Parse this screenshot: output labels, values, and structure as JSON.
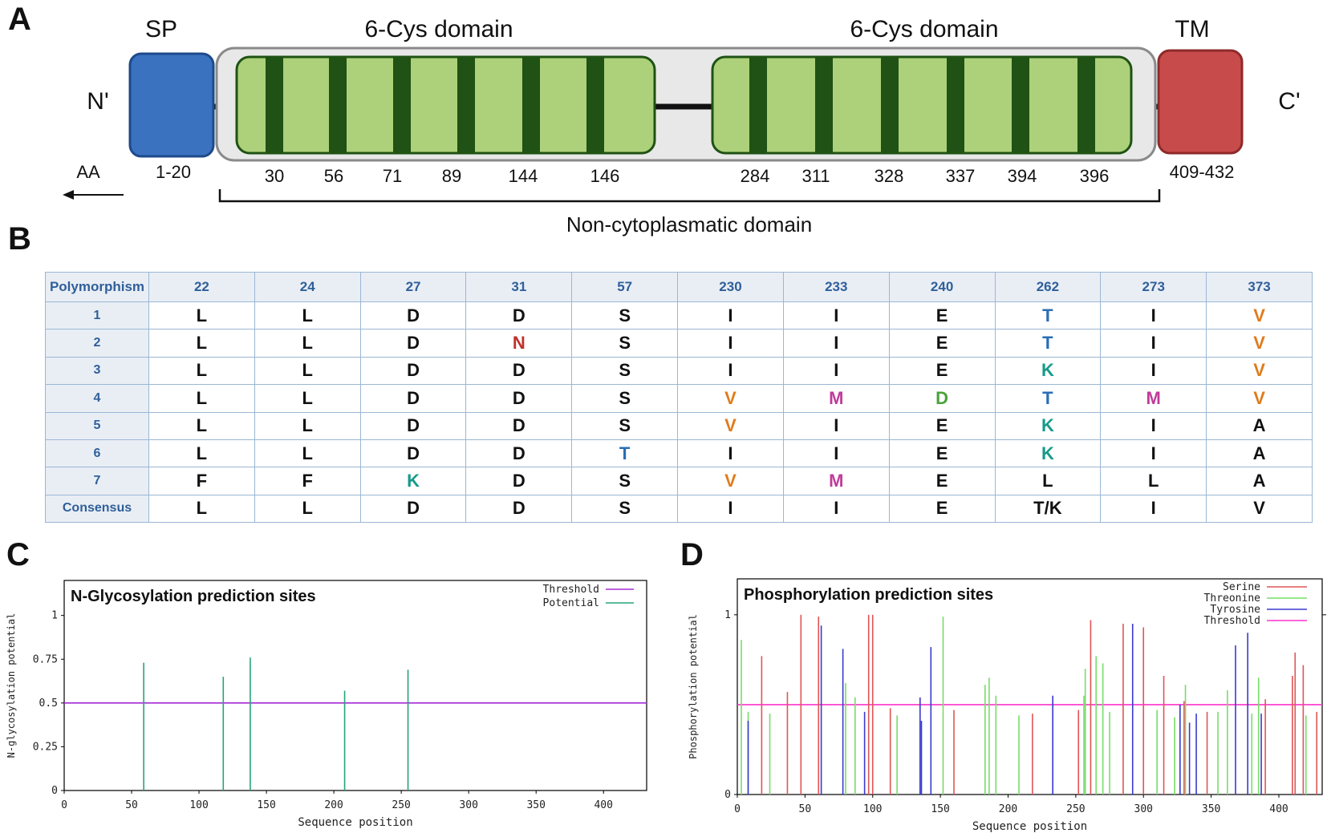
{
  "panels": {
    "a": "A",
    "b": "B",
    "c": "C",
    "d": "D"
  },
  "panel_a": {
    "n_term": "N'",
    "c_term": "C'",
    "sp_label": "SP",
    "tm_label": "TM",
    "domain1_label": "6-Cys domain",
    "domain2_label": "6-Cys domain",
    "aa_label": "AA",
    "sp_range": "1-20",
    "tm_range": "409-432",
    "domain1_positions": [
      "30",
      "56",
      "71",
      "89",
      "144",
      "146"
    ],
    "domain2_positions": [
      "284",
      "311",
      "328",
      "337",
      "394",
      "396"
    ],
    "bracket_label": "Non-cytoplasmatic domain",
    "colors": {
      "sp": "#3a72c0",
      "tm": "#c84b4b",
      "domain_light": "#acd17a",
      "domain_dark": "#1f5214",
      "shell": "#e8e8e8"
    }
  },
  "table": {
    "corner": "Polymorphism",
    "positions": [
      "22",
      "24",
      "27",
      "31",
      "57",
      "230",
      "233",
      "240",
      "262",
      "273",
      "373"
    ],
    "rows": [
      {
        "label": "1",
        "cells": [
          {
            "v": "L"
          },
          {
            "v": "L"
          },
          {
            "v": "D"
          },
          {
            "v": "D"
          },
          {
            "v": "S"
          },
          {
            "v": "I"
          },
          {
            "v": "I"
          },
          {
            "v": "E"
          },
          {
            "v": "T",
            "c": "#2a6db5"
          },
          {
            "v": "I"
          },
          {
            "v": "V",
            "c": "#e07b1a"
          }
        ]
      },
      {
        "label": "2",
        "cells": [
          {
            "v": "L"
          },
          {
            "v": "L"
          },
          {
            "v": "D"
          },
          {
            "v": "N",
            "c": "#c0302a"
          },
          {
            "v": "S"
          },
          {
            "v": "I"
          },
          {
            "v": "I"
          },
          {
            "v": "E"
          },
          {
            "v": "T",
            "c": "#2a6db5"
          },
          {
            "v": "I"
          },
          {
            "v": "V",
            "c": "#e07b1a"
          }
        ]
      },
      {
        "label": "3",
        "cells": [
          {
            "v": "L"
          },
          {
            "v": "L"
          },
          {
            "v": "D"
          },
          {
            "v": "D"
          },
          {
            "v": "S"
          },
          {
            "v": "I"
          },
          {
            "v": "I"
          },
          {
            "v": "E"
          },
          {
            "v": "K",
            "c": "#179a8a"
          },
          {
            "v": "I"
          },
          {
            "v": "V",
            "c": "#e07b1a"
          }
        ]
      },
      {
        "label": "4",
        "cells": [
          {
            "v": "L"
          },
          {
            "v": "L"
          },
          {
            "v": "D"
          },
          {
            "v": "D"
          },
          {
            "v": "S"
          },
          {
            "v": "V",
            "c": "#e07b1a"
          },
          {
            "v": "M",
            "c": "#c03b9a"
          },
          {
            "v": "D",
            "c": "#4aa33a"
          },
          {
            "v": "T",
            "c": "#2a6db5"
          },
          {
            "v": "M",
            "c": "#c03b9a"
          },
          {
            "v": "V",
            "c": "#e07b1a"
          }
        ]
      },
      {
        "label": "5",
        "cells": [
          {
            "v": "L"
          },
          {
            "v": "L"
          },
          {
            "v": "D"
          },
          {
            "v": "D"
          },
          {
            "v": "S"
          },
          {
            "v": "V",
            "c": "#e07b1a"
          },
          {
            "v": "I"
          },
          {
            "v": "E"
          },
          {
            "v": "K",
            "c": "#179a8a"
          },
          {
            "v": "I"
          },
          {
            "v": "A"
          }
        ]
      },
      {
        "label": "6",
        "cells": [
          {
            "v": "L"
          },
          {
            "v": "L"
          },
          {
            "v": "D"
          },
          {
            "v": "D"
          },
          {
            "v": "T",
            "c": "#2a6db5"
          },
          {
            "v": "I"
          },
          {
            "v": "I"
          },
          {
            "v": "E"
          },
          {
            "v": "K",
            "c": "#179a8a"
          },
          {
            "v": "I"
          },
          {
            "v": "A"
          }
        ]
      },
      {
        "label": "7",
        "cells": [
          {
            "v": "F"
          },
          {
            "v": "F"
          },
          {
            "v": "K",
            "c": "#179a8a"
          },
          {
            "v": "D"
          },
          {
            "v": "S"
          },
          {
            "v": "V",
            "c": "#e07b1a"
          },
          {
            "v": "M",
            "c": "#c03b9a"
          },
          {
            "v": "E"
          },
          {
            "v": "L"
          },
          {
            "v": "L"
          },
          {
            "v": "A"
          }
        ]
      },
      {
        "label": "Consensus",
        "cells": [
          {
            "v": "L"
          },
          {
            "v": "L"
          },
          {
            "v": "D"
          },
          {
            "v": "D"
          },
          {
            "v": "S"
          },
          {
            "v": "I"
          },
          {
            "v": "I"
          },
          {
            "v": "E"
          },
          {
            "v": "T/K"
          },
          {
            "v": "I"
          },
          {
            "v": "V"
          }
        ]
      }
    ]
  },
  "chart_data": [
    {
      "type": "bar",
      "title": "N-Glycosylation prediction sites",
      "xlabel": "Sequence position",
      "ylabel": "N-glycosylation potential",
      "xlim": [
        0,
        432
      ],
      "ylim": [
        0,
        1.2
      ],
      "xticks": [
        0,
        50,
        100,
        150,
        200,
        250,
        300,
        350,
        400
      ],
      "yticks": [
        0,
        0.25,
        0.5,
        0.75,
        1
      ],
      "ytick_labels": [
        "0",
        "0.25",
        "0.5",
        "0.75",
        "1"
      ],
      "threshold": 0.5,
      "legend": [
        {
          "name": "Threshold",
          "color": "#a52ad6"
        },
        {
          "name": "Potential",
          "color": "#27a37a"
        }
      ],
      "series": [
        {
          "name": "Potential",
          "color": "#27a37a",
          "points": [
            {
              "x": 59,
              "y": 0.73
            },
            {
              "x": 118,
              "y": 0.65
            },
            {
              "x": 138,
              "y": 0.76
            },
            {
              "x": 208,
              "y": 0.57
            },
            {
              "x": 255,
              "y": 0.69
            }
          ]
        }
      ]
    },
    {
      "type": "bar",
      "title": "Phosphorylation prediction sites",
      "xlabel": "Sequence position",
      "ylabel": "Phosphorylation potential",
      "xlim": [
        0,
        432
      ],
      "ylim": [
        0,
        1.2
      ],
      "xticks": [
        0,
        50,
        100,
        150,
        200,
        250,
        300,
        350,
        400
      ],
      "yticks": [
        0,
        1
      ],
      "ytick_labels": [
        "0",
        "1"
      ],
      "threshold": 0.5,
      "legend": [
        {
          "name": "Serine",
          "color": "#e05555"
        },
        {
          "name": "Threonine",
          "color": "#77dd66"
        },
        {
          "name": "Tyrosine",
          "color": "#3a3ad0"
        },
        {
          "name": "Threshold",
          "color": "#ff33cc"
        }
      ],
      "series": [
        {
          "name": "Serine",
          "color": "#e05555",
          "points": [
            {
              "x": 18,
              "y": 0.77
            },
            {
              "x": 37,
              "y": 0.57
            },
            {
              "x": 47,
              "y": 1.0
            },
            {
              "x": 60,
              "y": 0.99
            },
            {
              "x": 97,
              "y": 1.0
            },
            {
              "x": 100,
              "y": 1.0
            },
            {
              "x": 113,
              "y": 0.48
            },
            {
              "x": 160,
              "y": 0.47
            },
            {
              "x": 218,
              "y": 0.45
            },
            {
              "x": 252,
              "y": 0.47
            },
            {
              "x": 261,
              "y": 0.97
            },
            {
              "x": 285,
              "y": 0.95
            },
            {
              "x": 300,
              "y": 0.93
            },
            {
              "x": 315,
              "y": 0.66
            },
            {
              "x": 330,
              "y": 0.52
            },
            {
              "x": 347,
              "y": 0.46
            },
            {
              "x": 390,
              "y": 0.53
            },
            {
              "x": 410,
              "y": 0.66
            },
            {
              "x": 412,
              "y": 0.79
            },
            {
              "x": 418,
              "y": 0.72
            },
            {
              "x": 428,
              "y": 0.46
            }
          ]
        },
        {
          "name": "Threonine",
          "color": "#77dd66",
          "points": [
            {
              "x": 3,
              "y": 0.86
            },
            {
              "x": 8,
              "y": 0.46
            },
            {
              "x": 24,
              "y": 0.45
            },
            {
              "x": 80,
              "y": 0.62
            },
            {
              "x": 87,
              "y": 0.54
            },
            {
              "x": 118,
              "y": 0.44
            },
            {
              "x": 152,
              "y": 0.99
            },
            {
              "x": 183,
              "y": 0.61
            },
            {
              "x": 186,
              "y": 0.65
            },
            {
              "x": 191,
              "y": 0.55
            },
            {
              "x": 208,
              "y": 0.44
            },
            {
              "x": 256,
              "y": 0.55
            },
            {
              "x": 257,
              "y": 0.7
            },
            {
              "x": 265,
              "y": 0.77
            },
            {
              "x": 270,
              "y": 0.73
            },
            {
              "x": 275,
              "y": 0.46
            },
            {
              "x": 310,
              "y": 0.47
            },
            {
              "x": 323,
              "y": 0.43
            },
            {
              "x": 331,
              "y": 0.61
            },
            {
              "x": 355,
              "y": 0.46
            },
            {
              "x": 362,
              "y": 0.58
            },
            {
              "x": 380,
              "y": 0.45
            },
            {
              "x": 385,
              "y": 0.65
            },
            {
              "x": 420,
              "y": 0.44
            }
          ]
        },
        {
          "name": "Tyrosine",
          "color": "#3a3ad0",
          "points": [
            {
              "x": 8,
              "y": 0.41
            },
            {
              "x": 62,
              "y": 0.94
            },
            {
              "x": 78,
              "y": 0.81
            },
            {
              "x": 94,
              "y": 0.46
            },
            {
              "x": 135,
              "y": 0.54
            },
            {
              "x": 136,
              "y": 0.41
            },
            {
              "x": 143,
              "y": 0.82
            },
            {
              "x": 233,
              "y": 0.55
            },
            {
              "x": 292,
              "y": 0.95
            },
            {
              "x": 327,
              "y": 0.5
            },
            {
              "x": 334,
              "y": 0.4
            },
            {
              "x": 339,
              "y": 0.45
            },
            {
              "x": 368,
              "y": 0.83
            },
            {
              "x": 377,
              "y": 0.9
            },
            {
              "x": 387,
              "y": 0.45
            }
          ]
        }
      ]
    }
  ]
}
